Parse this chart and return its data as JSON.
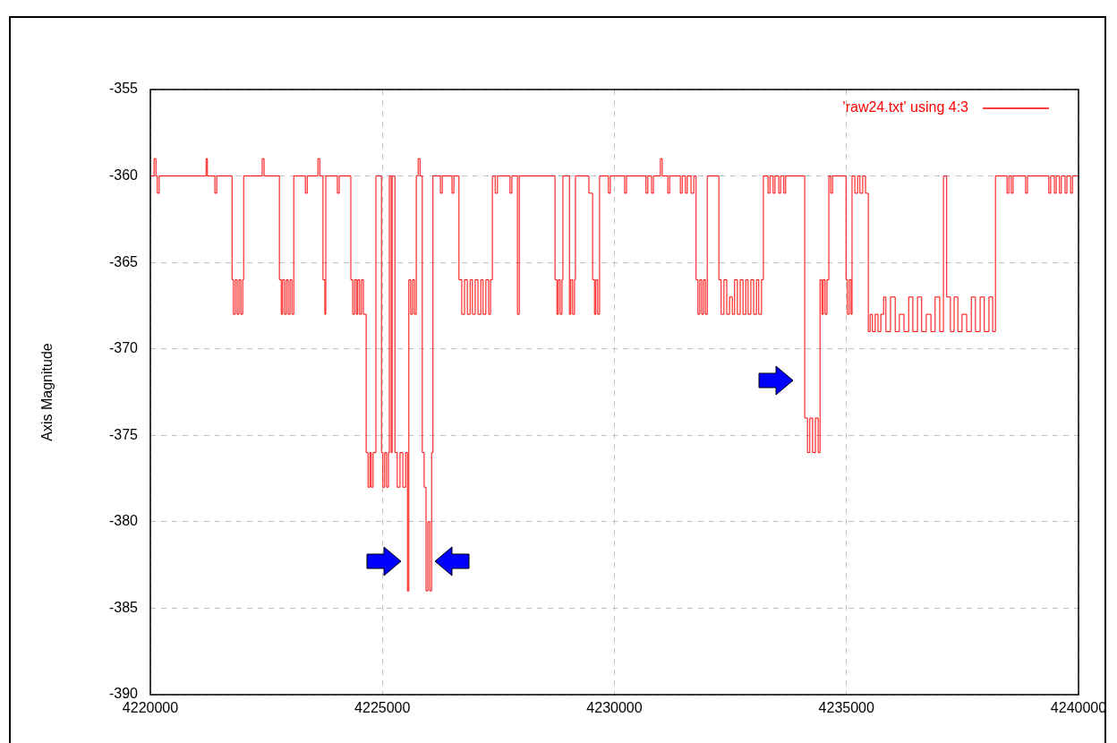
{
  "chart_data": {
    "type": "step",
    "ylabel": "Axis Magnitude",
    "xlim": [
      4220000,
      4240000
    ],
    "xticks": [
      4220000,
      4225000,
      4230000,
      4235000,
      4240000
    ],
    "ylim": [
      -390,
      -355
    ],
    "yticks": [
      -390,
      -385,
      -380,
      -375,
      -370,
      -365,
      -360,
      -355
    ],
    "grid": true,
    "legend": "top right",
    "marker": "none",
    "line_style": "solid",
    "series": [
      {
        "name": "'raw24.txt' using 4:3",
        "color": "#ff0000",
        "x": [
          4220000,
          4220080,
          4220120,
          4220150,
          4220190,
          4221200,
          4221230,
          4221390,
          4221430,
          4221760,
          4221790,
          4221830,
          4221870,
          4221910,
          4221950,
          4221990,
          4222010,
          4222410,
          4222450,
          4222780,
          4222820,
          4222850,
          4222890,
          4222930,
          4222970,
          4223010,
          4223050,
          4223090,
          4223340,
          4223380,
          4223610,
          4223650,
          4223720,
          4223760,
          4223780,
          4224030,
          4224070,
          4224320,
          4224360,
          4224400,
          4224440,
          4224470,
          4224510,
          4224550,
          4224590,
          4224650,
          4224690,
          4224730,
          4224760,
          4224800,
          4224860,
          4224980,
          4225010,
          4225050,
          4225090,
          4225130,
          4225150,
          4225190,
          4225210,
          4225270,
          4225320,
          4225380,
          4225440,
          4225500,
          4225540,
          4225570,
          4225610,
          4225650,
          4225690,
          4225730,
          4225770,
          4225810,
          4225860,
          4225900,
          4225940,
          4225980,
          4226020,
          4226060,
          4226090,
          4226250,
          4226290,
          4226500,
          4226540,
          4226650,
          4226710,
          4226770,
          4226830,
          4226890,
          4226940,
          4227000,
          4227060,
          4227120,
          4227170,
          4227230,
          4227290,
          4227330,
          4227370,
          4227430,
          4227480,
          4227750,
          4227790,
          4227910,
          4227950,
          4228720,
          4228760,
          4228790,
          4228830,
          4228870,
          4228890,
          4229030,
          4229060,
          4229100,
          4229140,
          4229160,
          4229450,
          4229530,
          4229570,
          4229600,
          4229640,
          4229680,
          4229870,
          4229910,
          4230220,
          4230260,
          4230680,
          4230720,
          4230800,
          4230840,
          4230990,
          4231030,
          4231150,
          4231190,
          4231420,
          4231460,
          4231530,
          4231570,
          4231650,
          4231710,
          4231760,
          4231800,
          4231840,
          4231880,
          4231920,
          4231960,
          4232000,
          4232250,
          4232300,
          4232360,
          4232420,
          4232480,
          4232540,
          4232590,
          4232650,
          4232710,
          4232770,
          4232830,
          4232880,
          4232940,
          4233000,
          4233060,
          4233110,
          4233170,
          4233210,
          4233310,
          4233350,
          4233420,
          4233460,
          4233540,
          4233580,
          4233650,
          4233690,
          4234100,
          4234160,
          4234210,
          4234270,
          4234330,
          4234390,
          4234430,
          4234470,
          4234500,
          4234540,
          4234580,
          4234620,
          4234660,
          4234700,
          4234990,
          4235020,
          4235060,
          4235100,
          4235120,
          4235180,
          4235240,
          4235290,
          4235350,
          4235410,
          4235470,
          4235510,
          4235560,
          4235620,
          4235680,
          4235740,
          4235800,
          4235850,
          4235950,
          4236050,
          4236140,
          4236240,
          4236340,
          4236430,
          4236530,
          4236620,
          4236720,
          4236820,
          4236910,
          4237010,
          4237090,
          4237160,
          4237240,
          4237320,
          4237400,
          4237490,
          4237590,
          4237690,
          4237780,
          4237880,
          4237970,
          4238070,
          4238150,
          4238210,
          4238460,
          4238500,
          4238550,
          4238590,
          4238860,
          4238900,
          4239360,
          4239400,
          4239480,
          4239520,
          4239590,
          4239630,
          4239710,
          4239750,
          4239830,
          4239870,
          4240000
        ],
        "values": [
          -360,
          -359,
          -360,
          -361,
          -360,
          -359,
          -360,
          -361,
          -360,
          -366,
          -368,
          -366,
          -368,
          -366,
          -368,
          -366,
          -360,
          -359,
          -360,
          -366,
          -368,
          -366,
          -368,
          -366,
          -368,
          -366,
          -368,
          -360,
          -361,
          -360,
          -359,
          -360,
          -366,
          -368,
          -360,
          -361,
          -360,
          -366,
          -368,
          -366,
          -368,
          -366,
          -368,
          -366,
          -368,
          -376,
          -378,
          -376,
          -378,
          -376,
          -360,
          -376,
          -378,
          -376,
          -378,
          -376,
          -360,
          -376,
          -360,
          -376,
          -378,
          -376,
          -378,
          -376,
          -384,
          -366,
          -368,
          -366,
          -368,
          -360,
          -359,
          -360,
          -376,
          -378,
          -384,
          -380,
          -384,
          -376,
          -360,
          -361,
          -360,
          -361,
          -360,
          -366,
          -368,
          -366,
          -368,
          -366,
          -368,
          -366,
          -368,
          -366,
          -368,
          -366,
          -368,
          -366,
          -360,
          -361,
          -360,
          -361,
          -360,
          -368,
          -360,
          -366,
          -368,
          -366,
          -368,
          -366,
          -360,
          -368,
          -366,
          -368,
          -366,
          -360,
          -361,
          -366,
          -368,
          -366,
          -368,
          -360,
          -361,
          -360,
          -361,
          -360,
          -361,
          -360,
          -361,
          -360,
          -359,
          -360,
          -361,
          -360,
          -361,
          -360,
          -361,
          -360,
          -361,
          -360,
          -366,
          -368,
          -366,
          -368,
          -366,
          -368,
          -360,
          -366,
          -368,
          -366,
          -368,
          -367,
          -368,
          -366,
          -368,
          -366,
          -368,
          -366,
          -368,
          -366,
          -368,
          -366,
          -368,
          -366,
          -360,
          -361,
          -360,
          -361,
          -360,
          -361,
          -360,
          -361,
          -360,
          -374,
          -376,
          -374,
          -376,
          -374,
          -376,
          -366,
          -368,
          -366,
          -368,
          -366,
          -360,
          -361,
          -360,
          -366,
          -368,
          -366,
          -368,
          -360,
          -361,
          -360,
          -361,
          -360,
          -361,
          -369,
          -368,
          -369,
          -368,
          -369,
          -368,
          -367,
          -369,
          -367,
          -369,
          -368,
          -369,
          -367,
          -369,
          -367,
          -369,
          -368,
          -369,
          -367,
          -369,
          -360,
          -367,
          -369,
          -367,
          -369,
          -368,
          -369,
          -367,
          -369,
          -367,
          -369,
          -367,
          -369,
          -360,
          -361,
          -360,
          -361,
          -360,
          -361,
          -360,
          -361,
          -360,
          -361,
          -360,
          -361,
          -360,
          -361,
          -360,
          -361,
          -360,
          -360
        ]
      }
    ]
  }
}
